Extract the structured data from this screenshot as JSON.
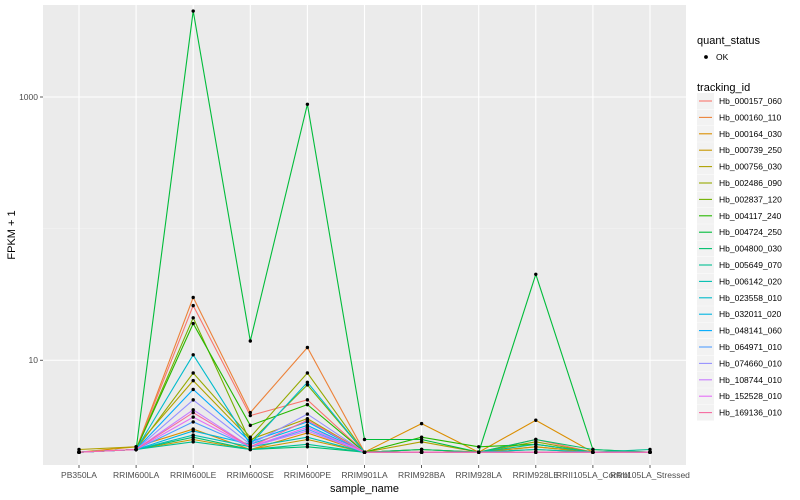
{
  "chart_data": {
    "type": "line",
    "xlabel": "sample_name",
    "ylabel": "FPKM + 1",
    "y_scale": "log10",
    "ylim": [
      1.6,
      5000
    ],
    "y_ticks": [
      10,
      1000
    ],
    "grid": true,
    "legend_position": "right",
    "categories": [
      "PB350LA",
      "RRIM600LA",
      "RRIM600LE",
      "RRIM600SE",
      "RRIM600PE",
      "RRIM901LA",
      "RRIM928BA",
      "RRIM928LA",
      "RRIM928LE",
      "RRII105LA_Control",
      "RRII105LA_Stressed"
    ],
    "quant_status_legend": {
      "title": "quant_status",
      "entries": [
        "OK"
      ]
    },
    "tracking_legend_title": "tracking_id",
    "series": [
      {
        "name": "Hb_000157_060",
        "color": "#F8766D",
        "values": [
          2.0,
          2.1,
          26,
          3.8,
          5.0,
          2.0,
          2.0,
          2.0,
          2.5,
          2.0,
          2.0
        ]
      },
      {
        "name": "Hb_000160_110",
        "color": "#EC8239",
        "values": [
          2.0,
          2.1,
          30,
          4.0,
          12.5,
          2.0,
          2.0,
          2.0,
          2.2,
          2.0,
          2.0
        ]
      },
      {
        "name": "Hb_000164_030",
        "color": "#DB8E00",
        "values": [
          2.0,
          2.2,
          3.0,
          2.1,
          2.8,
          2.0,
          3.3,
          2.0,
          3.5,
          2.0,
          2.0
        ]
      },
      {
        "name": "Hb_000739_250",
        "color": "#C79800",
        "values": [
          2.0,
          2.1,
          2.5,
          2.1,
          2.5,
          2.0,
          2.0,
          2.0,
          2.2,
          2.0,
          2.0
        ]
      },
      {
        "name": "Hb_000756_030",
        "color": "#AFA100",
        "values": [
          2.1,
          2.2,
          7.0,
          2.5,
          3.6,
          2.0,
          2.4,
          2.0,
          2.0,
          2.0,
          2.0
        ]
      },
      {
        "name": "Hb_002486_090",
        "color": "#96A900",
        "values": [
          2.0,
          2.1,
          8.0,
          2.6,
          8.0,
          2.0,
          2.1,
          2.0,
          2.4,
          2.0,
          2.0
        ]
      },
      {
        "name": "Hb_002837_120",
        "color": "#72B000",
        "values": [
          2.0,
          2.1,
          21,
          2.4,
          6.5,
          2.0,
          2.1,
          2.0,
          2.1,
          2.0,
          2.0
        ]
      },
      {
        "name": "Hb_004117_240",
        "color": "#27B800",
        "values": [
          2.0,
          2.1,
          19,
          3.2,
          4.6,
          2.0,
          2.6,
          2.2,
          2.3,
          2.0,
          2.0
        ]
      },
      {
        "name": "Hb_004724_250",
        "color": "#00BC3A",
        "values": [
          2.0,
          2.1,
          4500,
          14,
          880,
          2.5,
          2.5,
          2.0,
          45,
          2.1,
          2.0
        ]
      },
      {
        "name": "Hb_004800_030",
        "color": "#00BF6D",
        "values": [
          2.0,
          2.1,
          2.6,
          2.1,
          2.2,
          2.0,
          2.1,
          2.0,
          2.5,
          2.1,
          2.0
        ]
      },
      {
        "name": "Hb_005649_070",
        "color": "#00C092",
        "values": [
          2.0,
          2.1,
          2.4,
          2.1,
          2.3,
          2.0,
          2.0,
          2.0,
          2.3,
          2.0,
          2.1
        ]
      },
      {
        "name": "Hb_006142_020",
        "color": "#00BFB1",
        "values": [
          2.0,
          2.1,
          2.7,
          2.2,
          2.6,
          2.0,
          2.0,
          2.0,
          2.1,
          2.0,
          2.0
        ]
      },
      {
        "name": "Hb_023558_010",
        "color": "#00BBCB",
        "values": [
          2.0,
          2.1,
          11,
          2.3,
          6.8,
          2.0,
          2.0,
          2.0,
          2.0,
          2.0,
          2.0
        ]
      },
      {
        "name": "Hb_032011_020",
        "color": "#00B5E2",
        "values": [
          2.0,
          2.1,
          2.9,
          2.3,
          3.2,
          2.0,
          2.0,
          2.0,
          2.0,
          2.0,
          2.0
        ]
      },
      {
        "name": "Hb_048141_060",
        "color": "#00ABFD",
        "values": [
          2.0,
          2.1,
          6.0,
          2.4,
          3.4,
          2.0,
          2.0,
          2.0,
          2.0,
          2.0,
          2.0
        ]
      },
      {
        "name": "Hb_064971_010",
        "color": "#529EFF",
        "values": [
          2.0,
          2.1,
          3.4,
          2.2,
          3.0,
          2.0,
          2.0,
          2.0,
          2.0,
          2.0,
          2.0
        ]
      },
      {
        "name": "Hb_074660_010",
        "color": "#9590FF",
        "values": [
          2.0,
          2.1,
          5.0,
          2.3,
          3.9,
          2.0,
          2.0,
          2.0,
          2.0,
          2.0,
          2.0
        ]
      },
      {
        "name": "Hb_108744_010",
        "color": "#C77CFF",
        "values": [
          2.0,
          2.1,
          4.2,
          2.2,
          2.9,
          2.0,
          2.0,
          2.0,
          2.0,
          2.0,
          2.0
        ]
      },
      {
        "name": "Hb_152528_010",
        "color": "#E46EF6",
        "values": [
          2.0,
          2.1,
          3.7,
          2.2,
          3.1,
          2.0,
          2.0,
          2.0,
          2.0,
          2.0,
          2.0
        ]
      },
      {
        "name": "Hb_169136_010",
        "color": "#F7699F",
        "values": [
          2.0,
          2.1,
          4.0,
          2.2,
          3.5,
          2.0,
          2.0,
          2.0,
          2.0,
          2.0,
          2.0
        ]
      }
    ]
  }
}
